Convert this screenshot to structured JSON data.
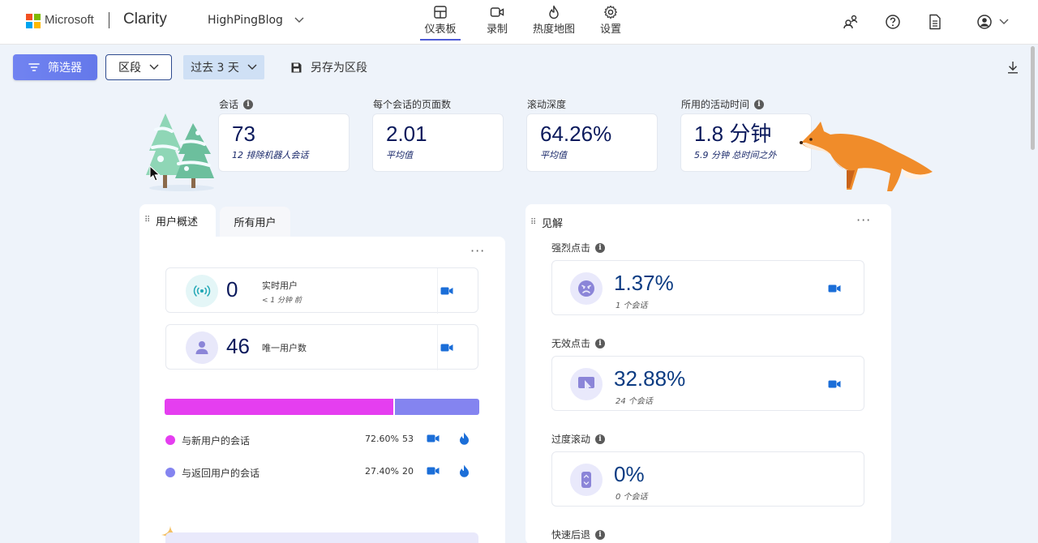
{
  "brand": {
    "company": "Microsoft",
    "product": "Clarity",
    "project": "HighPingBlog"
  },
  "nav": [
    {
      "label": "仪表板",
      "icon": "dashboard-icon",
      "active": true
    },
    {
      "label": "录制",
      "icon": "recording-icon",
      "active": false
    },
    {
      "label": "热度地图",
      "icon": "heatmap-icon",
      "active": false
    },
    {
      "label": "设置",
      "icon": "gear-icon",
      "active": false
    }
  ],
  "toolbar": {
    "filter_label": "筛选器",
    "segment_label": "区段",
    "range_label": "过去 3 天",
    "save_label": "另存为区段"
  },
  "metrics": [
    {
      "label": "会话",
      "value": "73",
      "sub": "12 排除机器人会话",
      "info": true
    },
    {
      "label": "每个会话的页面数",
      "value": "2.01",
      "sub": "平均值",
      "info": false
    },
    {
      "label": "滚动深度",
      "value": "64.26%",
      "sub": "平均值",
      "info": false
    },
    {
      "label": "所用的活动时间",
      "value": "1.8 分钟",
      "sub": "5.9 分钟 总时间之外",
      "info": true
    }
  ],
  "users_panel": {
    "tab_active": "用户概述",
    "tab_inactive": "所有用户",
    "live": {
      "value": "0",
      "title": "实时用户",
      "sub": "< 1 分钟 前"
    },
    "unique": {
      "value": "46",
      "title": "唯一用户数"
    },
    "split": {
      "new": {
        "label": "与新用户的会话",
        "percent": "72.60%",
        "count": "53",
        "fraction": 0.726,
        "color": "#e53ef0"
      },
      "returning": {
        "label": "与返回用户的会话",
        "percent": "27.40%",
        "count": "20",
        "fraction": 0.274,
        "color": "#8484f0"
      }
    }
  },
  "insights": {
    "title": "见解",
    "items": [
      {
        "label": "强烈点击",
        "value": "1.37%",
        "sub": "1 个会话",
        "icon": "angry-face-icon"
      },
      {
        "label": "无效点击",
        "value": "32.88%",
        "sub": "24 个会话",
        "icon": "dead-click-icon"
      },
      {
        "label": "过度滚动",
        "value": "0%",
        "sub": "0 个会话",
        "icon": "scroll-icon"
      },
      {
        "label": "快速后退"
      }
    ]
  },
  "colors": {
    "accent": "#4f5bd5",
    "video": "#1b6ed8",
    "heatmap": "#1b6ed8"
  }
}
